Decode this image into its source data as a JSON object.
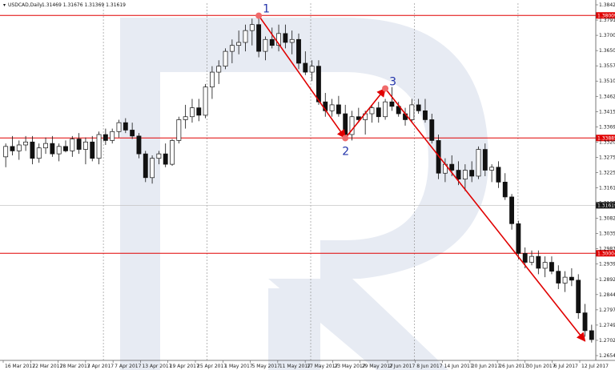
{
  "header": {
    "symbol": "USDCAD,Daily",
    "ohlc": "1.31469 1.31676 1.31369 1.31619"
  },
  "chart_data": {
    "type": "candlestick",
    "symbol": "USDCAD",
    "timeframe": "Daily",
    "ylim": [
      1.264,
      1.3842
    ],
    "y_ticks": [
      "1.38420",
      "1.37910",
      "1.37000",
      "1.36500",
      "1.35570",
      "1.35100",
      "1.34620",
      "1.34150",
      "1.33690",
      "1.33200",
      "1.32750",
      "1.32250",
      "1.31619",
      "1.31300",
      "1.30820",
      "1.30350",
      "1.29870",
      "1.29390",
      "1.28920",
      "1.28440",
      "1.27970",
      "1.27490",
      "1.27020",
      "1.26540"
    ],
    "x_ticks": [
      "16 Mar 2017",
      "22 Mar 2017",
      "28 Mar 2017",
      "3 Apr 2017",
      "7 Apr 2017",
      "13 Apr 2017",
      "19 Apr 2017",
      "25 Apr 2017",
      "1 May 2017",
      "5 May 2017",
      "11 May 2017",
      "17 May 2017",
      "23 May 2017",
      "29 May 2017",
      "2 Jun 2017",
      "8 Jun 2017",
      "14 Jun 2017",
      "20 Jun 2017",
      "26 Jun 2017",
      "30 Jun 2017",
      "6 Jul 2017",
      "12 Jul 2017"
    ],
    "levels": [
      {
        "value": "1.38009",
        "color": "#e00000"
      },
      {
        "value": "1.33885",
        "color": "#e00000"
      },
      {
        "value": "1.30004",
        "color": "#e00000"
      }
    ],
    "current_price": "1.31619",
    "candles": [
      [
        1.3325,
        1.337,
        1.329,
        1.336
      ],
      [
        1.336,
        1.3395,
        1.333,
        1.3345
      ],
      [
        1.3345,
        1.338,
        1.3315,
        1.3365
      ],
      [
        1.3365,
        1.3395,
        1.3345,
        1.3375
      ],
      [
        1.3375,
        1.3395,
        1.33,
        1.332
      ],
      [
        1.332,
        1.337,
        1.3305,
        1.3355
      ],
      [
        1.3355,
        1.339,
        1.3335,
        1.337
      ],
      [
        1.337,
        1.3395,
        1.3325,
        1.3335
      ],
      [
        1.3335,
        1.337,
        1.331,
        1.336
      ],
      [
        1.336,
        1.338,
        1.334,
        1.3345
      ],
      [
        1.3345,
        1.3395,
        1.3325,
        1.3385
      ],
      [
        1.3385,
        1.3405,
        1.3335,
        1.335
      ],
      [
        1.335,
        1.339,
        1.33,
        1.3375
      ],
      [
        1.3375,
        1.3395,
        1.331,
        1.332
      ],
      [
        1.332,
        1.341,
        1.33,
        1.34
      ],
      [
        1.34,
        1.342,
        1.3365,
        1.338
      ],
      [
        1.338,
        1.342,
        1.337,
        1.341
      ],
      [
        1.341,
        1.345,
        1.339,
        1.344
      ],
      [
        1.344,
        1.3455,
        1.3405,
        1.3415
      ],
      [
        1.3415,
        1.344,
        1.3385,
        1.3395
      ],
      [
        1.3395,
        1.3405,
        1.332,
        1.3335
      ],
      [
        1.3335,
        1.3345,
        1.324,
        1.3255
      ],
      [
        1.3255,
        1.333,
        1.3235,
        1.332
      ],
      [
        1.332,
        1.3345,
        1.33,
        1.3335
      ],
      [
        1.3335,
        1.337,
        1.329,
        1.33
      ],
      [
        1.33,
        1.3385,
        1.3295,
        1.338
      ],
      [
        1.338,
        1.346,
        1.337,
        1.345
      ],
      [
        1.345,
        1.35,
        1.342,
        1.346
      ],
      [
        1.346,
        1.352,
        1.344,
        1.349
      ],
      [
        1.349,
        1.352,
        1.3445,
        1.3465
      ],
      [
        1.3465,
        1.357,
        1.3455,
        1.356
      ],
      [
        1.356,
        1.363,
        1.352,
        1.361
      ],
      [
        1.361,
        1.365,
        1.357,
        1.363
      ],
      [
        1.363,
        1.369,
        1.362,
        1.368
      ],
      [
        1.368,
        1.372,
        1.364,
        1.37
      ],
      [
        1.37,
        1.375,
        1.367,
        1.371
      ],
      [
        1.371,
        1.377,
        1.368,
        1.375
      ],
      [
        1.375,
        1.379,
        1.37,
        1.377
      ],
      [
        1.377,
        1.38,
        1.366,
        1.368
      ],
      [
        1.368,
        1.373,
        1.365,
        1.372
      ],
      [
        1.372,
        1.376,
        1.369,
        1.37
      ],
      [
        1.37,
        1.377,
        1.368,
        1.374
      ],
      [
        1.374,
        1.377,
        1.369,
        1.371
      ],
      [
        1.371,
        1.375,
        1.367,
        1.372
      ],
      [
        1.372,
        1.374,
        1.362,
        1.364
      ],
      [
        1.364,
        1.368,
        1.36,
        1.361
      ],
      [
        1.361,
        1.365,
        1.358,
        1.363
      ],
      [
        1.363,
        1.365,
        1.35,
        1.351
      ],
      [
        1.351,
        1.354,
        1.346,
        1.348
      ],
      [
        1.348,
        1.352,
        1.346,
        1.35
      ],
      [
        1.35,
        1.353,
        1.346,
        1.347
      ],
      [
        1.347,
        1.35,
        1.338,
        1.34
      ],
      [
        1.34,
        1.348,
        1.338,
        1.346
      ],
      [
        1.346,
        1.349,
        1.344,
        1.345
      ],
      [
        1.345,
        1.348,
        1.34,
        1.347
      ],
      [
        1.347,
        1.35,
        1.344,
        1.349
      ],
      [
        1.349,
        1.351,
        1.344,
        1.346
      ],
      [
        1.346,
        1.352,
        1.345,
        1.351
      ],
      [
        1.351,
        1.356,
        1.348,
        1.3495
      ],
      [
        1.3495,
        1.351,
        1.346,
        1.347
      ],
      [
        1.347,
        1.349,
        1.343,
        1.345
      ],
      [
        1.345,
        1.352,
        1.344,
        1.35
      ],
      [
        1.35,
        1.352,
        1.347,
        1.348
      ],
      [
        1.348,
        1.352,
        1.344,
        1.345
      ],
      [
        1.345,
        1.347,
        1.337,
        1.338
      ],
      [
        1.338,
        1.34,
        1.325,
        1.327
      ],
      [
        1.327,
        1.332,
        1.324,
        1.33
      ],
      [
        1.33,
        1.333,
        1.326,
        1.328
      ],
      [
        1.328,
        1.331,
        1.323,
        1.325
      ],
      [
        1.325,
        1.33,
        1.321,
        1.328
      ],
      [
        1.328,
        1.331,
        1.324,
        1.326
      ],
      [
        1.326,
        1.336,
        1.325,
        1.335
      ],
      [
        1.335,
        1.337,
        1.326,
        1.328
      ],
      [
        1.328,
        1.33,
        1.324,
        1.329
      ],
      [
        1.329,
        1.331,
        1.322,
        1.324
      ],
      [
        1.324,
        1.327,
        1.318,
        1.319
      ],
      [
        1.319,
        1.32,
        1.308,
        1.31
      ],
      [
        1.31,
        1.311,
        1.298,
        1.3
      ],
      [
        1.3,
        1.302,
        1.295,
        1.297
      ],
      [
        1.297,
        1.301,
        1.296,
        1.299
      ],
      [
        1.299,
        1.301,
        1.293,
        1.295
      ],
      [
        1.295,
        1.299,
        1.292,
        1.297
      ],
      [
        1.297,
        1.299,
        1.293,
        1.294
      ],
      [
        1.294,
        1.296,
        1.288,
        1.29
      ],
      [
        1.29,
        1.294,
        1.287,
        1.292
      ],
      [
        1.292,
        1.295,
        1.289,
        1.291
      ],
      [
        1.291,
        1.293,
        1.278,
        1.28
      ],
      [
        1.28,
        1.283,
        1.272,
        1.274
      ],
      [
        1.274,
        1.276,
        1.27,
        1.271
      ]
    ],
    "annotations": [
      {
        "label": "1",
        "point": [
          38,
          1.38
        ],
        "color": "#2233aa"
      },
      {
        "label": "2",
        "point": [
          51,
          1.3388
        ],
        "color": "#2233aa"
      },
      {
        "label": "3",
        "point": [
          57,
          1.3555
        ],
        "color": "#2233aa"
      }
    ],
    "arrows": [
      {
        "from": [
          38,
          1.38
        ],
        "to": [
          51,
          1.3388
        ]
      },
      {
        "from": [
          51,
          1.3388
        ],
        "to": [
          57,
          1.3555
        ]
      },
      {
        "from": [
          57,
          1.3555
        ],
        "to": [
          87,
          1.2705
        ]
      }
    ],
    "grid": true
  }
}
